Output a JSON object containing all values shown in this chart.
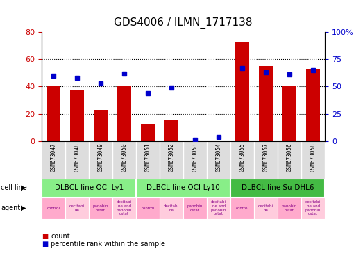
{
  "title": "GDS4006 / ILMN_1717138",
  "samples": [
    "GSM673047",
    "GSM673048",
    "GSM673049",
    "GSM673050",
    "GSM673051",
    "GSM673052",
    "GSM673053",
    "GSM673054",
    "GSM673055",
    "GSM673057",
    "GSM673056",
    "GSM673058"
  ],
  "counts": [
    41,
    37,
    23,
    40,
    12,
    15,
    0,
    0,
    73,
    55,
    41,
    53
  ],
  "percentiles": [
    60,
    58,
    53,
    62,
    44,
    49,
    1,
    4,
    67,
    63,
    61,
    65
  ],
  "bar_color": "#cc0000",
  "dot_color": "#0000cc",
  "ylim_left": [
    0,
    80
  ],
  "ylim_right": [
    0,
    100
  ],
  "yticks_left": [
    0,
    20,
    40,
    60,
    80
  ],
  "ytick_labels_right": [
    "0",
    "25",
    "50",
    "75",
    "100%"
  ],
  "gridlines_at": [
    20,
    40,
    60
  ],
  "cell_lines": [
    {
      "label": "DLBCL line OCI-Ly1",
      "start": 0,
      "end": 4,
      "color": "#88ee88"
    },
    {
      "label": "DLBCL line OCI-Ly10",
      "start": 4,
      "end": 8,
      "color": "#88ee88"
    },
    {
      "label": "DLBCL line Su-DHL6",
      "start": 8,
      "end": 12,
      "color": "#44bb44"
    }
  ],
  "agent_labels": [
    "control",
    "decitabi\nne",
    "panobin\nostat",
    "decitabi\nne and\npanobin\nostat"
  ],
  "agent_colors": [
    "#ffaacc",
    "#ffccdd",
    "#ffaacc",
    "#ffccdd"
  ],
  "tick_color_left": "#cc0000",
  "tick_color_right": "#0000cc",
  "bg_color": "#ffffff",
  "xtick_bg": "#dddddd",
  "title_fontsize": 11,
  "bar_width": 0.6,
  "dot_size": 5
}
